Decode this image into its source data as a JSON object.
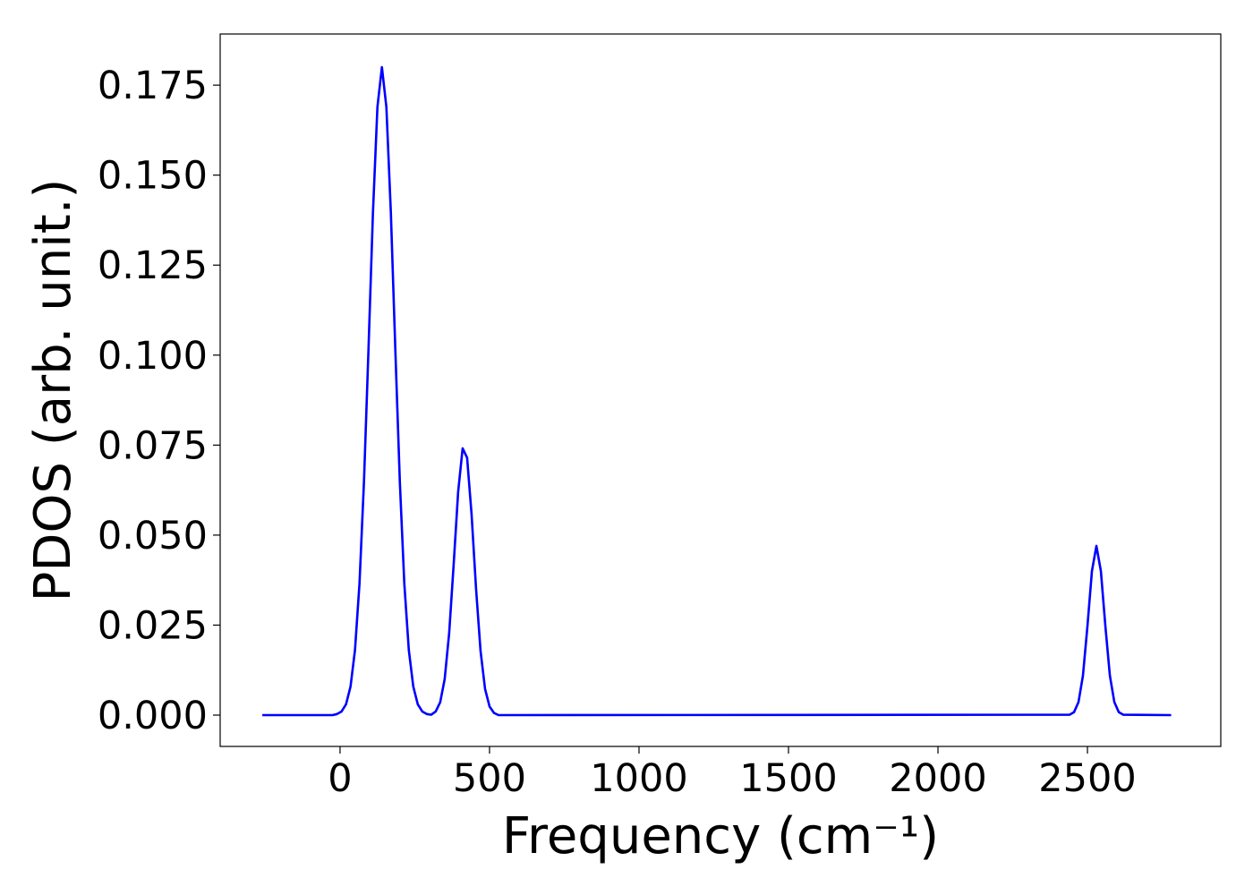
{
  "chart_data": {
    "type": "line",
    "xlabel": "Frequency (cm⁻¹)",
    "ylabel": "PDOS (arb. unit.)",
    "x": [
      -260,
      -25,
      -10,
      5,
      20,
      35,
      50,
      65,
      80,
      95,
      110,
      125,
      140,
      155,
      170,
      185,
      200,
      215,
      230,
      245,
      260,
      275,
      290,
      305,
      320,
      335,
      350,
      365,
      380,
      395,
      410,
      425,
      440,
      455,
      470,
      485,
      500,
      515,
      530,
      2440,
      2455,
      2470,
      2485,
      2500,
      2515,
      2530,
      2545,
      2560,
      2575,
      2590,
      2605,
      2620,
      2780
    ],
    "series": [
      {
        "name": "PDOS",
        "color": "#0000ff",
        "values": [
          0,
          0,
          0.0003,
          0.001,
          0.003,
          0.0079,
          0.0181,
          0.0365,
          0.0648,
          0.1013,
          0.1395,
          0.1689,
          0.18,
          0.1689,
          0.1395,
          0.1013,
          0.0648,
          0.0365,
          0.0181,
          0.0079,
          0.003,
          0.001,
          0.0003,
          0.0001,
          0.001,
          0.0036,
          0.01,
          0.0228,
          0.0418,
          0.062,
          0.0741,
          0.0715,
          0.0557,
          0.035,
          0.0178,
          0.0073,
          0.0024,
          0.0006,
          0,
          0.0001,
          0.0008,
          0.0036,
          0.011,
          0.0247,
          0.04,
          0.047,
          0.04,
          0.0247,
          0.011,
          0.0036,
          0.0008,
          0.0001,
          0
        ]
      }
    ],
    "xlim": [
      -401,
      2946
    ],
    "ylim": [
      -0.0087,
      0.1892
    ],
    "xticks": [
      0,
      500,
      1000,
      1500,
      2000,
      2500
    ],
    "yticks": [
      {
        "value": 0,
        "label": "0.000"
      },
      {
        "value": 0.025,
        "label": "0.025"
      },
      {
        "value": 0.05,
        "label": "0.050"
      },
      {
        "value": 0.075,
        "label": "0.075"
      },
      {
        "value": 0.1,
        "label": "0.100"
      },
      {
        "value": 0.125,
        "label": "0.125"
      },
      {
        "value": 0.15,
        "label": "0.150"
      },
      {
        "value": 0.175,
        "label": "0.175"
      }
    ],
    "grid": false
  }
}
